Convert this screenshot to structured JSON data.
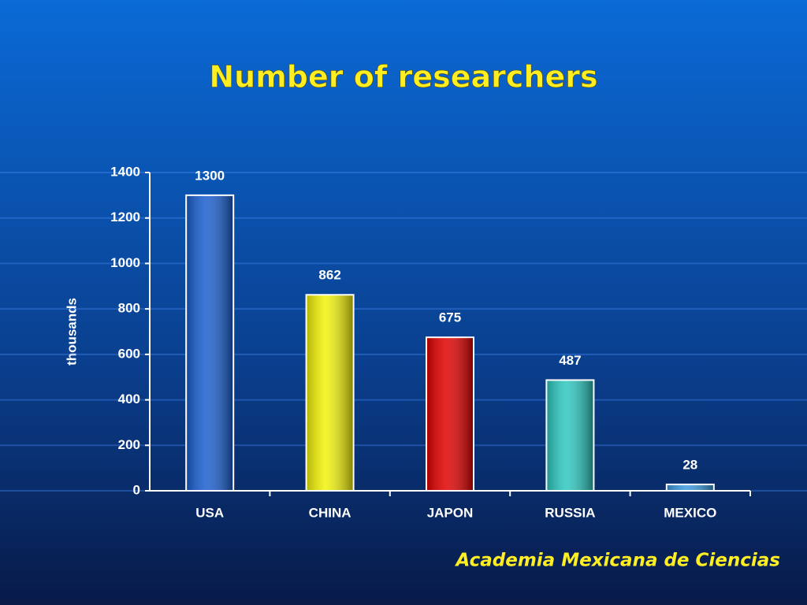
{
  "chart_data": {
    "type": "bar",
    "title": "Number of researchers",
    "y_label": "thousands",
    "categories": [
      "USA",
      "CHINA",
      "JAPON",
      "RUSSIA",
      "MEXICO"
    ],
    "values": [
      1300,
      862,
      675,
      487,
      28
    ],
    "colors": [
      "#1a5fd0",
      "#f2f20a",
      "#e00000",
      "#2ec8c0",
      "#3a9ae0"
    ],
    "ylim": [
      0,
      1400
    ],
    "yticks": [
      0,
      200,
      400,
      600,
      800,
      1000,
      1200,
      1400
    ],
    "grid": true,
    "source": "Academia Mexicana de Ciencias"
  }
}
